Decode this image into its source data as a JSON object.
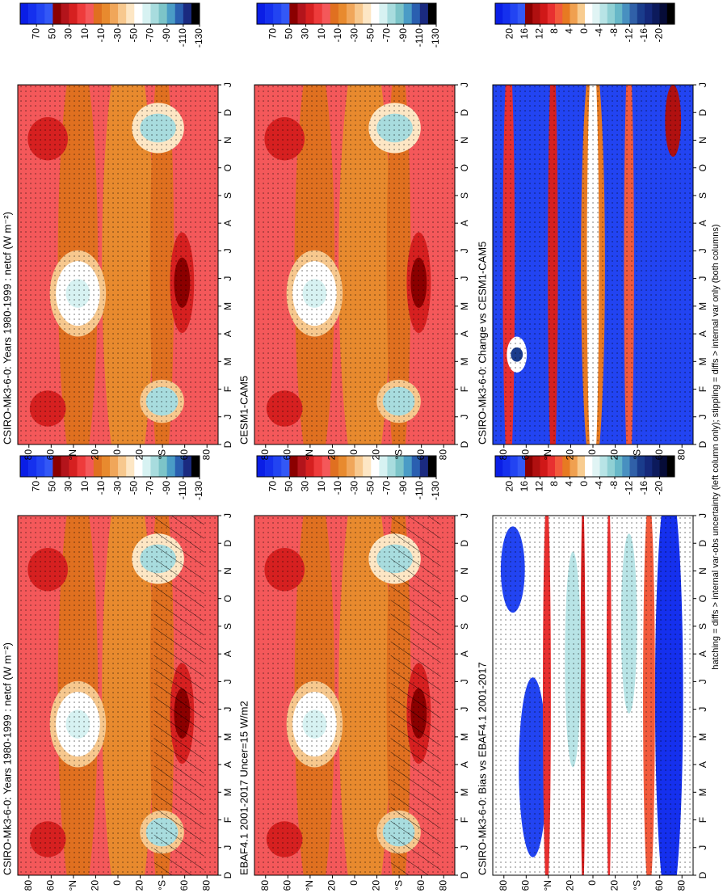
{
  "chart_data": [
    {
      "type": "contour",
      "title": "CSIRO-Mk3-6-0: Years 1980-1999 : netcf (W m⁻²)",
      "categories": [
        "D",
        "J",
        "F",
        "M",
        "A",
        "M",
        "J",
        "J",
        "A",
        "S",
        "O",
        "N",
        "D",
        "J"
      ],
      "ylim": [
        -90,
        90
      ],
      "yticks": [
        {
          "value": 80,
          "label": "80"
        },
        {
          "value": 60,
          "label": "60"
        },
        {
          "value": 40,
          "label": "°N"
        },
        {
          "value": 20,
          "label": "20"
        },
        0,
        {
          "value": -20,
          "label": "20"
        },
        {
          "value": -40,
          "label": "°S"
        },
        {
          "value": -60,
          "label": "60"
        },
        {
          "value": -80,
          "label": "80"
        }
      ],
      "colorbar": {
        "lim": [
          90,
          -130
        ],
        "ticks": [
          70,
          50,
          30,
          10,
          -10,
          -30,
          -50,
          -70,
          -90,
          -110,
          -130
        ],
        "colors": [
          "#0a1ee6",
          "#1530ee",
          "#2244f2",
          "#3358f6",
          "#8b0000",
          "#b3141b",
          "#d62020",
          "#ee3b3b",
          "#f4585a",
          "#e07020",
          "#e88a2e",
          "#f0a65a",
          "#f7c88e",
          "#fde6c4",
          "#ffffff",
          "#d7f2f2",
          "#a8dcde",
          "#7cc4c8",
          "#4a9cc6",
          "#2a5fb0",
          "#1a2a80",
          "#000000"
        ]
      }
    },
    {
      "type": "contour",
      "title": "EBAF4.1 2001-2017 Uncer=15 W/m2",
      "categories": [
        "D",
        "J",
        "F",
        "M",
        "A",
        "M",
        "J",
        "J",
        "A",
        "S",
        "O",
        "N",
        "D",
        "J"
      ],
      "ylim": [
        -90,
        90
      ],
      "yticks": [
        {
          "value": 80,
          "label": "80"
        },
        {
          "value": 60,
          "label": "60"
        },
        {
          "value": 40,
          "label": "°N"
        },
        {
          "value": 20,
          "label": "20"
        },
        0,
        {
          "value": -20,
          "label": "20"
        },
        {
          "value": -40,
          "label": "°S"
        },
        {
          "value": -60,
          "label": "60"
        },
        {
          "value": -80,
          "label": "80"
        }
      ],
      "colorbar": {
        "lim": [
          90,
          -130
        ],
        "ticks": [
          70,
          50,
          30,
          10,
          -10,
          -30,
          -50,
          -70,
          -90,
          -110,
          -130
        ],
        "colors": [
          "#0a1ee6",
          "#1530ee",
          "#2244f2",
          "#3358f6",
          "#8b0000",
          "#b3141b",
          "#d62020",
          "#ee3b3b",
          "#f4585a",
          "#e07020",
          "#e88a2e",
          "#f0a65a",
          "#f7c88e",
          "#fde6c4",
          "#ffffff",
          "#d7f2f2",
          "#a8dcde",
          "#7cc4c8",
          "#4a9cc6",
          "#2a5fb0",
          "#1a2a80",
          "#000000"
        ]
      }
    },
    {
      "type": "contour",
      "title": "CSIRO-Mk3-6-0: Bias vs EBAF4.1 2001-2017",
      "categories": [
        "D",
        "J",
        "F",
        "M",
        "A",
        "M",
        "J",
        "J",
        "A",
        "S",
        "O",
        "N",
        "D",
        "J"
      ],
      "ylim": [
        -90,
        90
      ],
      "yticks": [
        {
          "value": 80,
          "label": "80"
        },
        {
          "value": 60,
          "label": "60"
        },
        {
          "value": 40,
          "label": "°N"
        },
        {
          "value": 20,
          "label": "20"
        },
        0,
        {
          "value": -20,
          "label": "20"
        },
        {
          "value": -40,
          "label": "°S"
        },
        {
          "value": -60,
          "label": "60"
        },
        {
          "value": -80,
          "label": "80"
        }
      ],
      "colorbar": {
        "lim": [
          24,
          -24
        ],
        "ticks": [
          20,
          16,
          12,
          8,
          4,
          0,
          -4,
          -8,
          -12,
          -16,
          -20
        ],
        "colors": [
          "#0a1ee6",
          "#1530ee",
          "#2244f2",
          "#3358f6",
          "#8b0000",
          "#b01010",
          "#d01818",
          "#e83030",
          "#f25a3c",
          "#e77a22",
          "#f0a050",
          "#f8cc90",
          "#ffffff",
          "#e0f4f4",
          "#b8e4e6",
          "#90d0d4",
          "#68b8c8",
          "#4890c0",
          "#3060a8",
          "#1a3c8c",
          "#14287a",
          "#0c1a5c",
          "#060c38",
          "#000000"
        ]
      }
    },
    {
      "type": "contour",
      "title": "CSIRO-Mk3-6-0: Years 1980-1999 : netcf (W m⁻²)",
      "categories": [
        "D",
        "J",
        "F",
        "M",
        "A",
        "M",
        "J",
        "J",
        "A",
        "S",
        "O",
        "N",
        "D",
        "J"
      ],
      "ylim": [
        -90,
        90
      ],
      "yticks": [
        {
          "value": 80,
          "label": "80"
        },
        {
          "value": 60,
          "label": "60"
        },
        {
          "value": 40,
          "label": "°N"
        },
        {
          "value": 20,
          "label": "20"
        },
        0,
        {
          "value": -20,
          "label": "20"
        },
        {
          "value": -40,
          "label": "°S"
        },
        {
          "value": -60,
          "label": "60"
        },
        {
          "value": -80,
          "label": "80"
        }
      ],
      "colorbar": {
        "lim": [
          90,
          -130
        ],
        "ticks": [
          70,
          50,
          30,
          10,
          -10,
          -30,
          -50,
          -70,
          -90,
          -110,
          -130
        ],
        "colors": [
          "#0a1ee6",
          "#1530ee",
          "#2244f2",
          "#3358f6",
          "#8b0000",
          "#b3141b",
          "#d62020",
          "#ee3b3b",
          "#f4585a",
          "#e07020",
          "#e88a2e",
          "#f0a65a",
          "#f7c88e",
          "#fde6c4",
          "#ffffff",
          "#d7f2f2",
          "#a8dcde",
          "#7cc4c8",
          "#4a9cc6",
          "#2a5fb0",
          "#1a2a80",
          "#000000"
        ]
      }
    },
    {
      "type": "contour",
      "title": "CESM1-CAM5",
      "categories": [
        "D",
        "J",
        "F",
        "M",
        "A",
        "M",
        "J",
        "J",
        "A",
        "S",
        "O",
        "N",
        "D",
        "J"
      ],
      "ylim": [
        -90,
        90
      ],
      "yticks": [
        {
          "value": 80,
          "label": "80"
        },
        {
          "value": 60,
          "label": "60"
        },
        {
          "value": 40,
          "label": "°N"
        },
        {
          "value": 20,
          "label": "20"
        },
        0,
        {
          "value": -20,
          "label": "20"
        },
        {
          "value": -40,
          "label": "°S"
        },
        {
          "value": -60,
          "label": "60"
        },
        {
          "value": -80,
          "label": "80"
        }
      ],
      "colorbar": {
        "lim": [
          90,
          -130
        ],
        "ticks": [
          70,
          50,
          30,
          10,
          -10,
          -30,
          -50,
          -70,
          -90,
          -110,
          -130
        ],
        "colors": [
          "#0a1ee6",
          "#1530ee",
          "#2244f2",
          "#3358f6",
          "#8b0000",
          "#b3141b",
          "#d62020",
          "#ee3b3b",
          "#f4585a",
          "#e07020",
          "#e88a2e",
          "#f0a65a",
          "#f7c88e",
          "#fde6c4",
          "#ffffff",
          "#d7f2f2",
          "#a8dcde",
          "#7cc4c8",
          "#4a9cc6",
          "#2a5fb0",
          "#1a2a80",
          "#000000"
        ]
      }
    },
    {
      "type": "contour",
      "title": "CSIRO-Mk3-6-0: Change vs CESM1-CAM5",
      "categories": [
        "D",
        "J",
        "F",
        "M",
        "A",
        "M",
        "J",
        "J",
        "A",
        "S",
        "O",
        "N",
        "D",
        "J"
      ],
      "ylim": [
        -90,
        90
      ],
      "yticks": [
        {
          "value": 80,
          "label": "80"
        },
        {
          "value": 60,
          "label": "60"
        },
        {
          "value": 40,
          "label": "°N"
        },
        {
          "value": 20,
          "label": "20"
        },
        0,
        {
          "value": -20,
          "label": "20"
        },
        {
          "value": -40,
          "label": "°S"
        },
        {
          "value": -60,
          "label": "60"
        },
        {
          "value": -80,
          "label": "80"
        }
      ],
      "colorbar": {
        "lim": [
          24,
          -24
        ],
        "ticks": [
          20,
          16,
          12,
          8,
          4,
          0,
          -4,
          -8,
          -12,
          -16,
          -20
        ],
        "colors": [
          "#0a1ee6",
          "#1530ee",
          "#2244f2",
          "#3358f6",
          "#8b0000",
          "#b01010",
          "#d01818",
          "#e83030",
          "#f25a3c",
          "#e77a22",
          "#f0a050",
          "#f8cc90",
          "#ffffff",
          "#e0f4f4",
          "#b8e4e6",
          "#90d0d4",
          "#68b8c8",
          "#4890c0",
          "#3060a8",
          "#1a3c8c",
          "#14287a",
          "#0c1a5c",
          "#060c38",
          "#000000"
        ]
      }
    }
  ],
  "footnote": "hatching = diffs > internal var-obs uncertainty (left column only); stippling = diffs > internal var only (both columns)"
}
